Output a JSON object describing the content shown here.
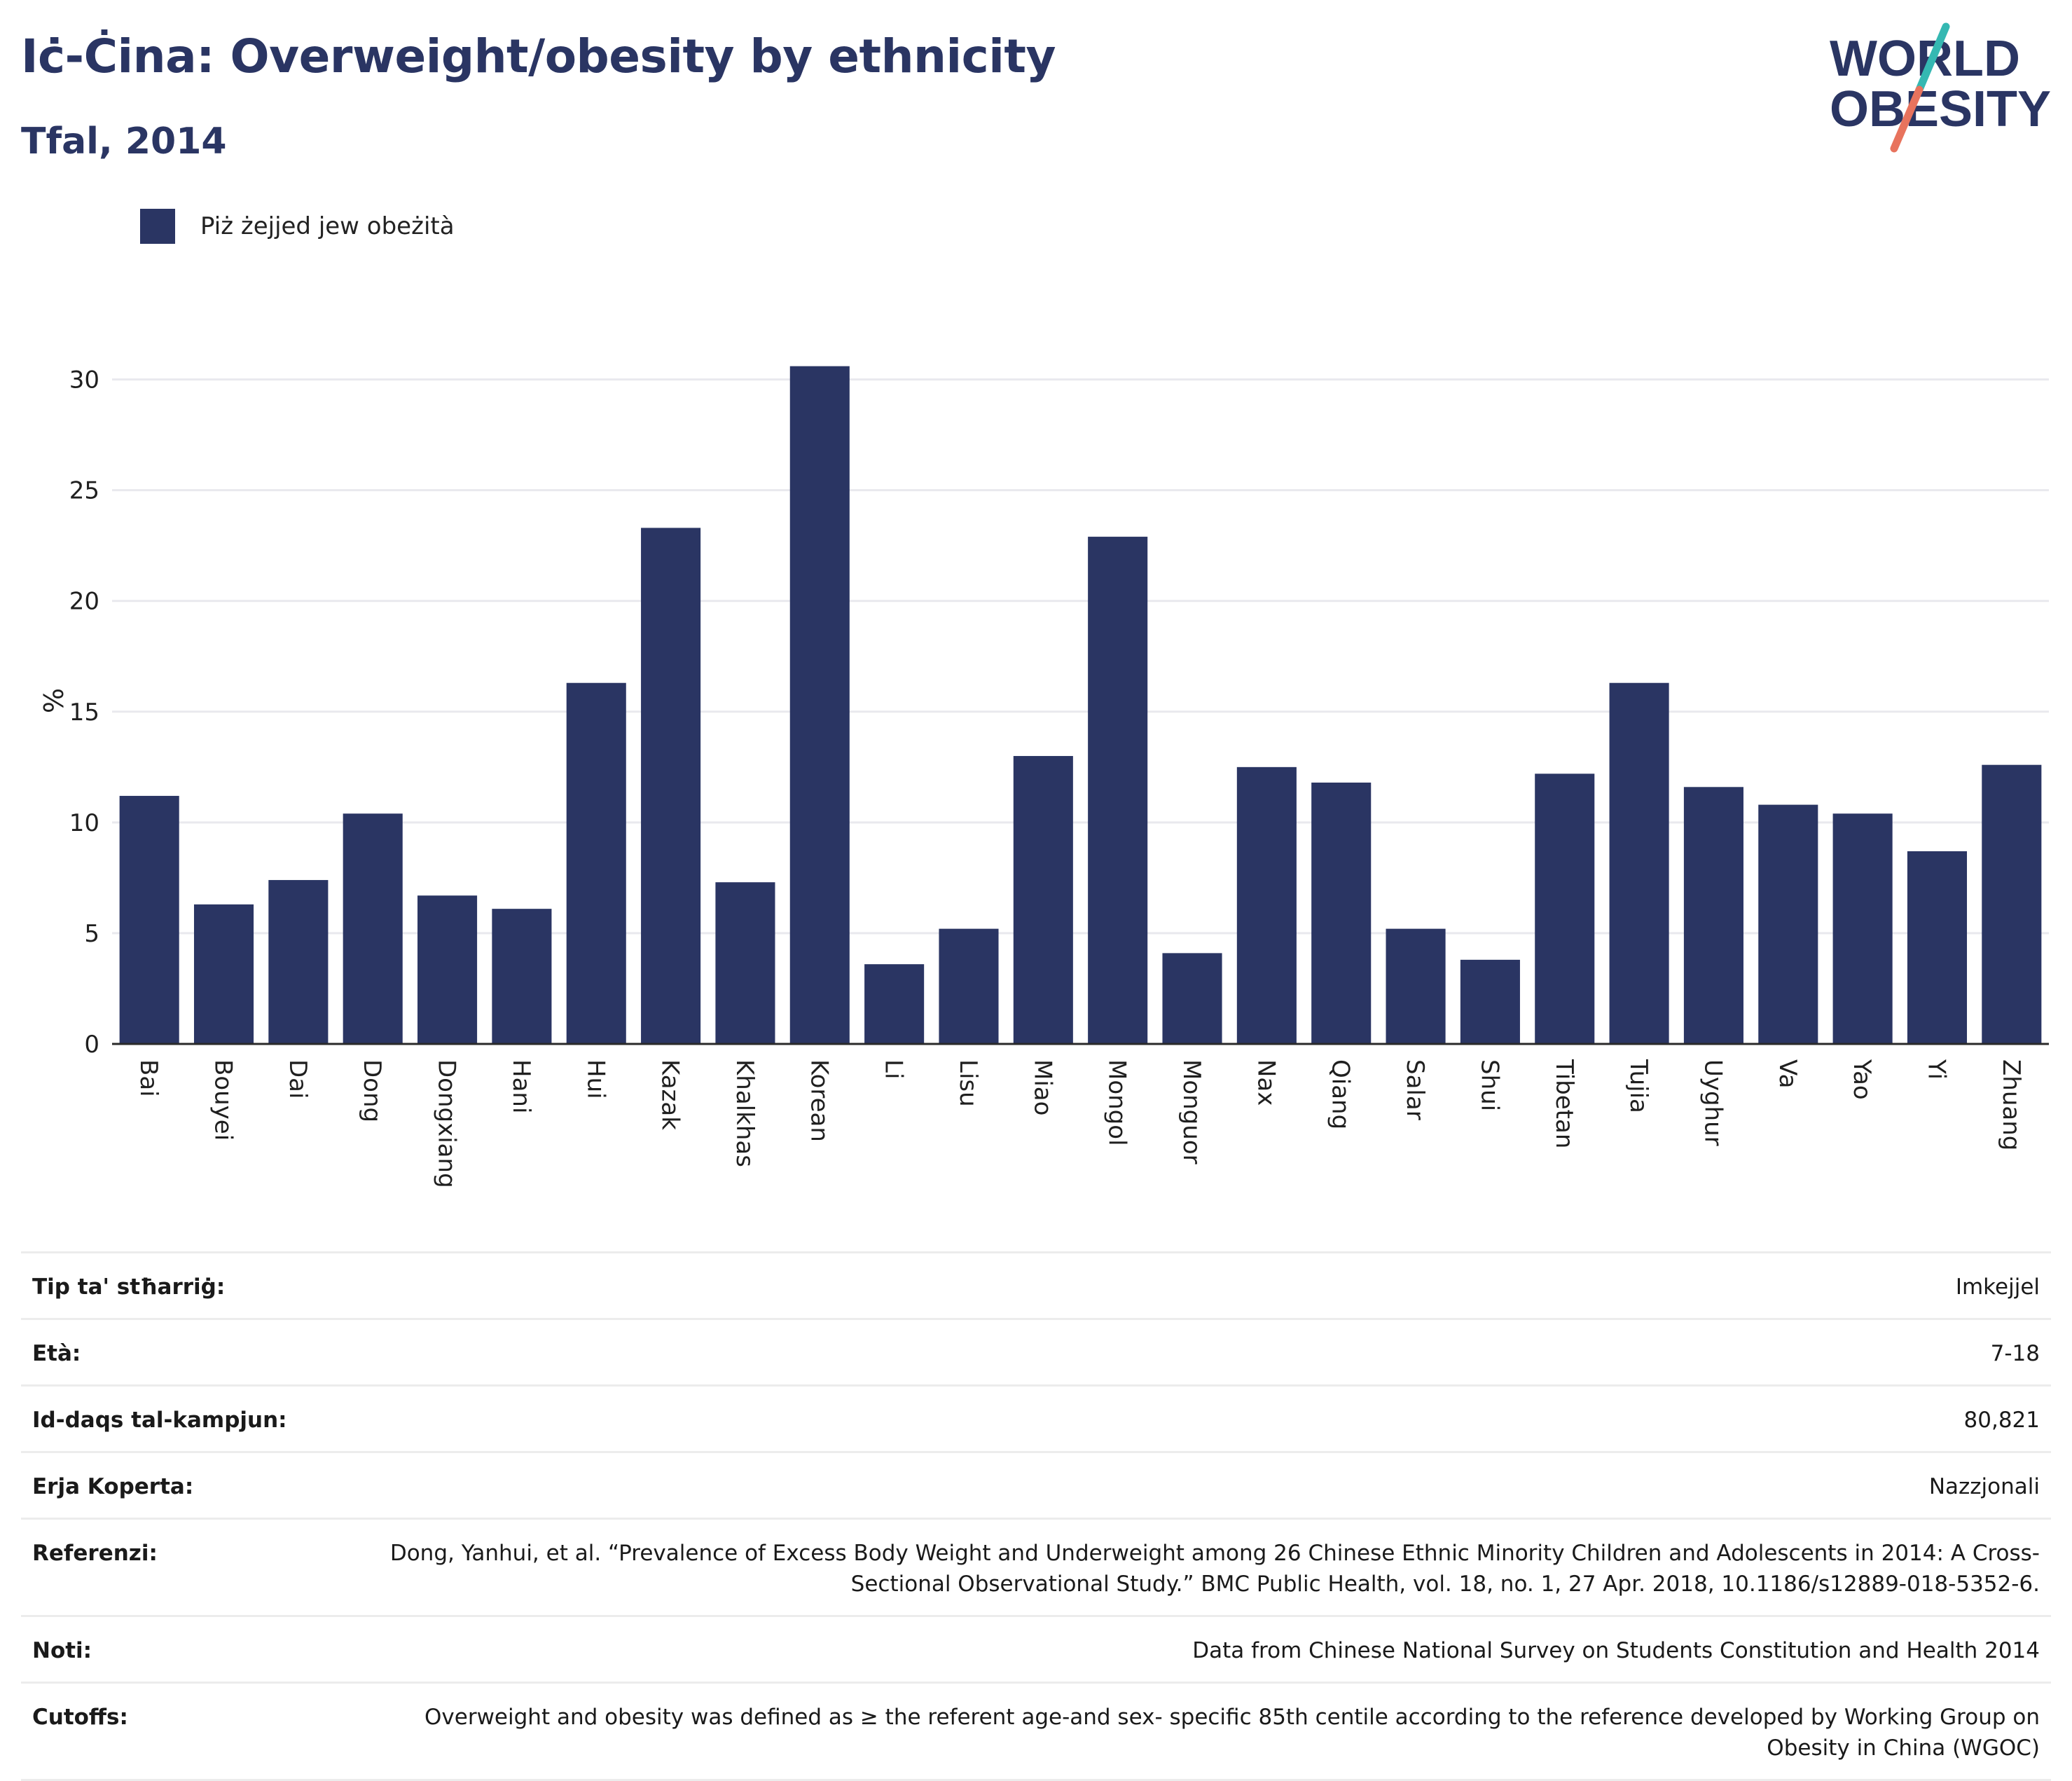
{
  "header": {
    "title": "Iċ-Ċina: Overweight/obesity by ethnicity",
    "subtitle": "Tfal, 2014"
  },
  "logo": {
    "line1": "WORLD",
    "line2": "OBESITY",
    "accent_teal": "#35b8b2",
    "accent_coral": "#e8735d"
  },
  "colors": {
    "bar": "#2a3563",
    "title": "#2a3563"
  },
  "chart_data": {
    "type": "bar",
    "categories": [
      "Bai",
      "Bouyei",
      "Dai",
      "Dong",
      "Dongxiang",
      "Hani",
      "Hui",
      "Kazak",
      "Khalkhas",
      "Korean",
      "Li",
      "Lisu",
      "Miao",
      "Mongol",
      "Monguor",
      "Nax",
      "Qiang",
      "Salar",
      "Shui",
      "Tibetan",
      "Tujia",
      "Uyghur",
      "Va",
      "Yao",
      "Yi",
      "Zhuang"
    ],
    "series": [
      {
        "name": "Piż żejjed jew obeżità",
        "values": [
          11.2,
          6.3,
          7.4,
          10.4,
          6.7,
          6.1,
          16.3,
          23.3,
          7.3,
          30.6,
          3.6,
          5.2,
          13.0,
          22.9,
          4.1,
          12.5,
          11.8,
          5.2,
          3.8,
          12.2,
          16.3,
          11.6,
          10.8,
          10.4,
          8.7,
          12.6
        ]
      }
    ],
    "ylabel": "%",
    "ylim": [
      0,
      31
    ],
    "yticks": [
      0,
      5,
      10,
      15,
      20,
      25,
      30
    ],
    "grid": true,
    "legend_position": "top-left"
  },
  "info": [
    {
      "label": "Tip ta' stħarriġ:",
      "value": "Imkejjel"
    },
    {
      "label": "Età:",
      "value": "7-18"
    },
    {
      "label": "Id-daqs tal-kampjun:",
      "value": "80,821"
    },
    {
      "label": "Erja Koperta:",
      "value": "Nazzjonali"
    },
    {
      "label": "Referenzi:",
      "value": "Dong, Yanhui, et al. “Prevalence of Excess Body Weight and Underweight among 26 Chinese Ethnic Minority Children and Adolescents in 2014: A Cross-Sectional Observational Study.” BMC Public Health, vol. 18, no. 1, 27 Apr. 2018, 10.1186/s12889-018-5352-6."
    },
    {
      "label": "Noti:",
      "value": "Data from Chinese National Survey on Students Constitution and Health 2014"
    },
    {
      "label": "Cutoffs:",
      "value": "Overweight and obesity was defined as ≥ the referent age-and sex- specific 85th centile according to the reference developed by Working Group on Obesity in China (WGOC)"
    }
  ]
}
